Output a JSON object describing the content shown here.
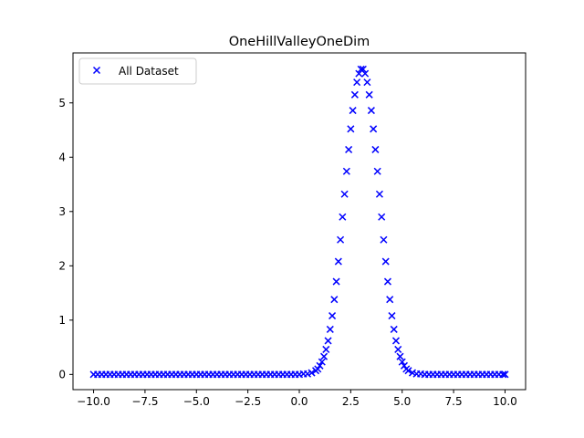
{
  "chart_data": {
    "type": "scatter",
    "title": "OneHillValleyOneDim",
    "xlabel": "",
    "ylabel": "",
    "xlim": [
      -11.0,
      11.0
    ],
    "ylim": [
      -0.28,
      5.92
    ],
    "x_ticks": [
      -10.0,
      -7.5,
      -5.0,
      -2.5,
      0.0,
      2.5,
      5.0,
      7.5,
      10.0
    ],
    "x_tick_labels": [
      "−10.0",
      "−7.5",
      "−5.0",
      "−2.5",
      "0.0",
      "2.5",
      "5.0",
      "7.5",
      "10.0"
    ],
    "y_ticks": [
      0,
      1,
      2,
      3,
      4,
      5
    ],
    "y_tick_labels": [
      "0",
      "1",
      "2",
      "3",
      "4",
      "5"
    ],
    "grid": false,
    "legend_position": "top-left",
    "marker": "x",
    "color": "#0000ff",
    "series": [
      {
        "name": "All Dataset",
        "points": [
          [
            -10.0,
            0.0
          ],
          [
            -9.8,
            0.0
          ],
          [
            -9.6,
            0.0
          ],
          [
            -9.4,
            0.0
          ],
          [
            -9.2,
            0.0
          ],
          [
            -9.0,
            0.0
          ],
          [
            -8.8,
            0.0
          ],
          [
            -8.6,
            0.0
          ],
          [
            -8.4,
            0.0
          ],
          [
            -8.2,
            0.0
          ],
          [
            -8.0,
            0.0
          ],
          [
            -7.8,
            0.0
          ],
          [
            -7.6,
            0.0
          ],
          [
            -7.4,
            0.0
          ],
          [
            -7.2,
            0.0
          ],
          [
            -7.0,
            0.0
          ],
          [
            -6.8,
            0.0
          ],
          [
            -6.6,
            0.0
          ],
          [
            -6.4,
            0.0
          ],
          [
            -6.2,
            0.0
          ],
          [
            -6.0,
            0.0
          ],
          [
            -5.8,
            0.0
          ],
          [
            -5.6,
            0.0
          ],
          [
            -5.4,
            0.0
          ],
          [
            -5.2,
            0.0
          ],
          [
            -5.0,
            0.0
          ],
          [
            -4.8,
            0.0
          ],
          [
            -4.6,
            0.0
          ],
          [
            -4.4,
            0.0
          ],
          [
            -4.2,
            0.0
          ],
          [
            -4.0,
            0.0
          ],
          [
            -3.8,
            0.0
          ],
          [
            -3.6,
            0.0
          ],
          [
            -3.4,
            0.0
          ],
          [
            -3.2,
            0.0
          ],
          [
            -3.0,
            0.0
          ],
          [
            -2.8,
            0.0
          ],
          [
            -2.6,
            0.0
          ],
          [
            -2.4,
            0.0
          ],
          [
            -2.2,
            0.0
          ],
          [
            -2.0,
            0.0
          ],
          [
            -1.8,
            0.0
          ],
          [
            -1.6,
            0.0
          ],
          [
            -1.4,
            0.0
          ],
          [
            -1.2,
            0.0
          ],
          [
            -1.0,
            0.0
          ],
          [
            -0.8,
            0.0
          ],
          [
            -0.6,
            0.0
          ],
          [
            -0.4,
            0.0
          ],
          [
            -0.2,
            0.0
          ],
          [
            0.0,
            0.0
          ],
          [
            0.2,
            0.01
          ],
          [
            0.4,
            0.01
          ],
          [
            0.6,
            0.03
          ],
          [
            0.8,
            0.07
          ],
          [
            0.9,
            0.1
          ],
          [
            1.0,
            0.16
          ],
          [
            1.1,
            0.23
          ],
          [
            1.2,
            0.33
          ],
          [
            1.3,
            0.46
          ],
          [
            1.4,
            0.62
          ],
          [
            1.5,
            0.83
          ],
          [
            1.6,
            1.08
          ],
          [
            1.7,
            1.38
          ],
          [
            1.8,
            1.71
          ],
          [
            1.9,
            2.08
          ],
          [
            2.0,
            2.48
          ],
          [
            2.1,
            2.9
          ],
          [
            2.2,
            3.32
          ],
          [
            2.3,
            3.74
          ],
          [
            2.4,
            4.14
          ],
          [
            2.5,
            4.52
          ],
          [
            2.6,
            4.86
          ],
          [
            2.7,
            5.15
          ],
          [
            2.8,
            5.38
          ],
          [
            2.9,
            5.54
          ],
          [
            3.0,
            5.62
          ],
          [
            3.1,
            5.62
          ],
          [
            3.2,
            5.54
          ],
          [
            3.3,
            5.38
          ],
          [
            3.4,
            5.15
          ],
          [
            3.5,
            4.86
          ],
          [
            3.6,
            4.52
          ],
          [
            3.7,
            4.14
          ],
          [
            3.8,
            3.74
          ],
          [
            3.9,
            3.32
          ],
          [
            4.0,
            2.9
          ],
          [
            4.1,
            2.48
          ],
          [
            4.2,
            2.08
          ],
          [
            4.3,
            1.71
          ],
          [
            4.4,
            1.38
          ],
          [
            4.5,
            1.08
          ],
          [
            4.6,
            0.83
          ],
          [
            4.7,
            0.62
          ],
          [
            4.8,
            0.46
          ],
          [
            4.9,
            0.33
          ],
          [
            5.0,
            0.23
          ],
          [
            5.1,
            0.16
          ],
          [
            5.2,
            0.1
          ],
          [
            5.3,
            0.07
          ],
          [
            5.5,
            0.03
          ],
          [
            5.7,
            0.01
          ],
          [
            5.9,
            0.01
          ],
          [
            6.1,
            0.0
          ],
          [
            6.3,
            0.0
          ],
          [
            6.5,
            0.0
          ],
          [
            6.7,
            0.0
          ],
          [
            6.9,
            0.0
          ],
          [
            7.1,
            0.0
          ],
          [
            7.3,
            0.0
          ],
          [
            7.5,
            0.0
          ],
          [
            7.7,
            0.0
          ],
          [
            7.9,
            0.0
          ],
          [
            8.1,
            0.0
          ],
          [
            8.3,
            0.0
          ],
          [
            8.5,
            0.0
          ],
          [
            8.7,
            0.0
          ],
          [
            8.9,
            0.0
          ],
          [
            9.1,
            0.0
          ],
          [
            9.3,
            0.0
          ],
          [
            9.5,
            0.0
          ],
          [
            9.7,
            0.0
          ],
          [
            9.9,
            0.0
          ],
          [
            10.0,
            0.0
          ]
        ]
      }
    ]
  }
}
